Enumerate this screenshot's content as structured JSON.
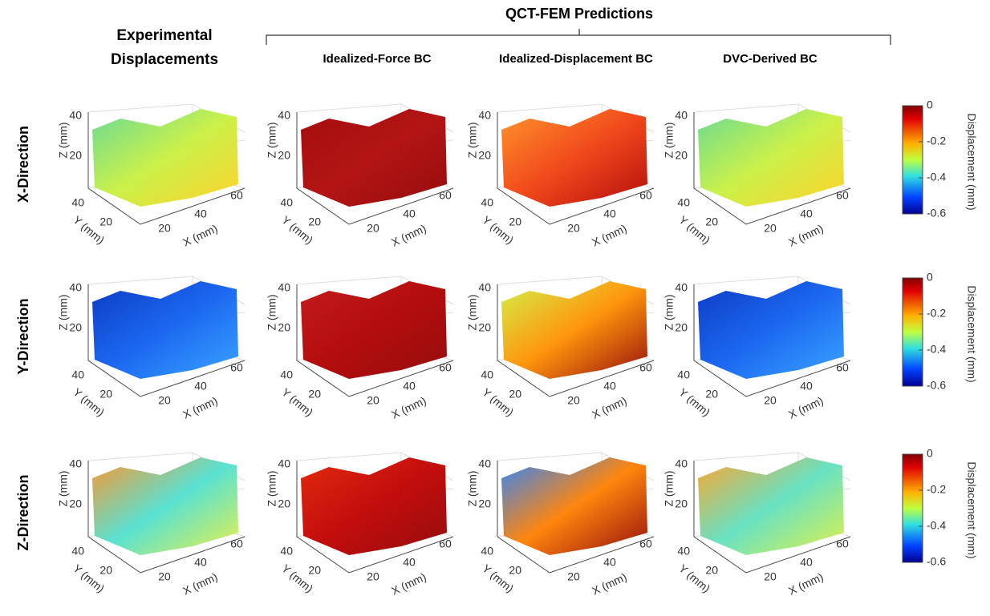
{
  "header": {
    "group_title": "QCT-FEM Predictions"
  },
  "columns": [
    "Experimental Displacements",
    "Idealized-Force BC",
    "Idealized-Displacement BC",
    "DVC-Derived BC"
  ],
  "rows": [
    "X-Direction",
    "Y-Direction",
    "Z-Direction"
  ],
  "axes": {
    "z_label": "Z (mm)",
    "y_label": "Y (mm)",
    "x_label": "X (mm)",
    "z_ticks": [
      20,
      40
    ],
    "y_ticks": [
      40,
      20
    ],
    "x_ticks": [
      20,
      40,
      60
    ]
  },
  "colorbar": {
    "label": "Displacement (mm)",
    "lim": [
      -0.6,
      0
    ],
    "ticks": [
      0,
      -0.2,
      -0.4,
      -0.6
    ]
  }
}
